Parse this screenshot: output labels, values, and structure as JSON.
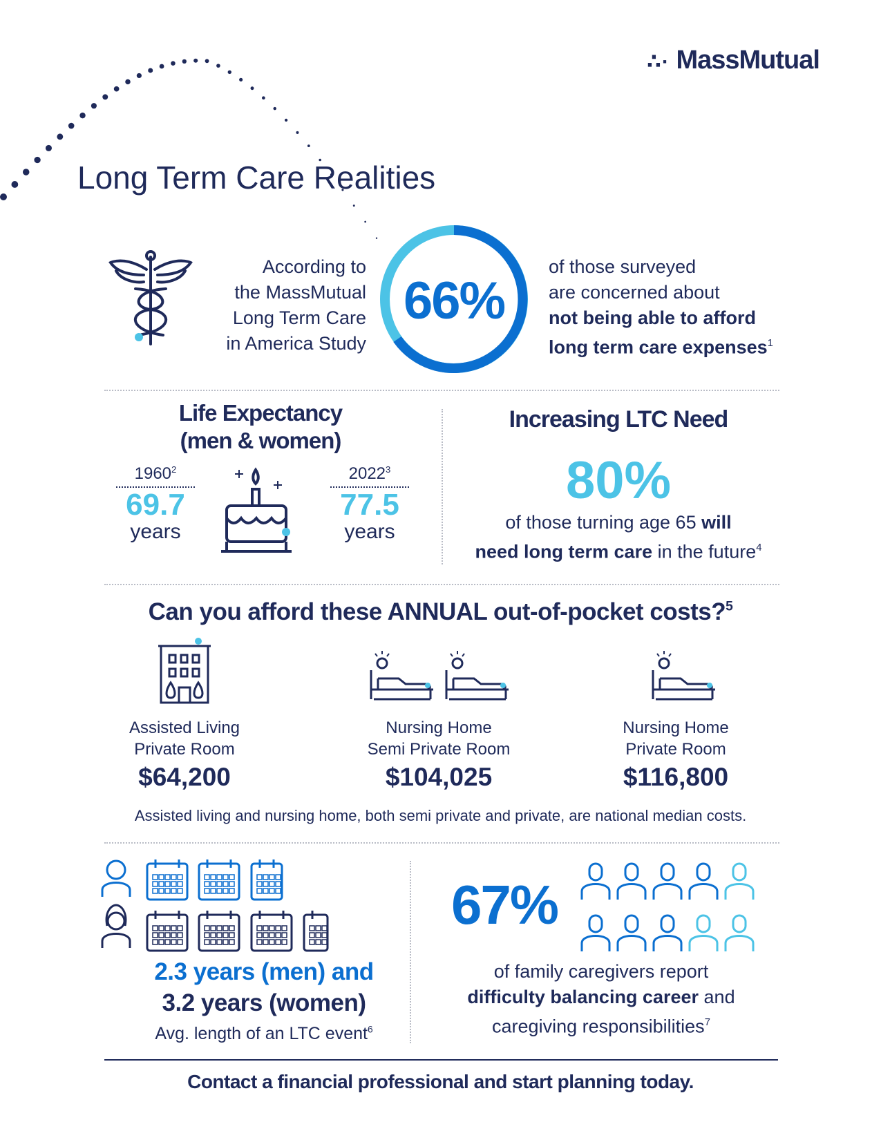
{
  "brand": "MassMutual",
  "title": "Long Term Care Realities",
  "intro": {
    "left": [
      "According to",
      "the MassMutual",
      "Long Term Care",
      "in America Study"
    ],
    "stat": "66%",
    "right": [
      "of those surveyed",
      "are concerned about"
    ],
    "right_bold": [
      "not being able to afford",
      "long term care expenses"
    ],
    "note": "1"
  },
  "life": {
    "heading": [
      "Life Expectancy",
      "(men & women)"
    ],
    "items": [
      {
        "year": "1960",
        "note": "2",
        "value": "69.7",
        "unit": "years"
      },
      {
        "year": "2022",
        "note": "3",
        "value": "77.5",
        "unit": "years"
      }
    ]
  },
  "need": {
    "heading": "Increasing LTC Need",
    "stat": "80%",
    "line1": "of those turning age 65",
    "bold1": "will",
    "bold2": "need long term care",
    "tail": "in the future",
    "note": "4"
  },
  "costs": {
    "heading": "Can you afford these ANNUAL out-of-pocket costs?",
    "note": "5",
    "items": [
      {
        "label": [
          "Assisted Living",
          "Private Room"
        ],
        "value": "$64,200"
      },
      {
        "label": [
          "Nursing Home",
          "Semi Private Room"
        ],
        "value": "$104,025"
      },
      {
        "label": [
          "Nursing Home",
          "Private Room"
        ],
        "value": "$116,800"
      }
    ],
    "footnote": "Assisted living and nursing home, both semi private and private, are national median costs."
  },
  "duration": {
    "men": "2.3 years (men) and",
    "women": "3.2 years (women)",
    "caption": "Avg. length of an LTC event",
    "note": "6"
  },
  "caregivers": {
    "stat": "67%",
    "line1": "of family caregivers report",
    "bold": "difficulty balancing career",
    "mid": "and",
    "line3": "caregiving responsibilities",
    "note": "7"
  },
  "footer": "Contact a financial professional and start planning today."
}
